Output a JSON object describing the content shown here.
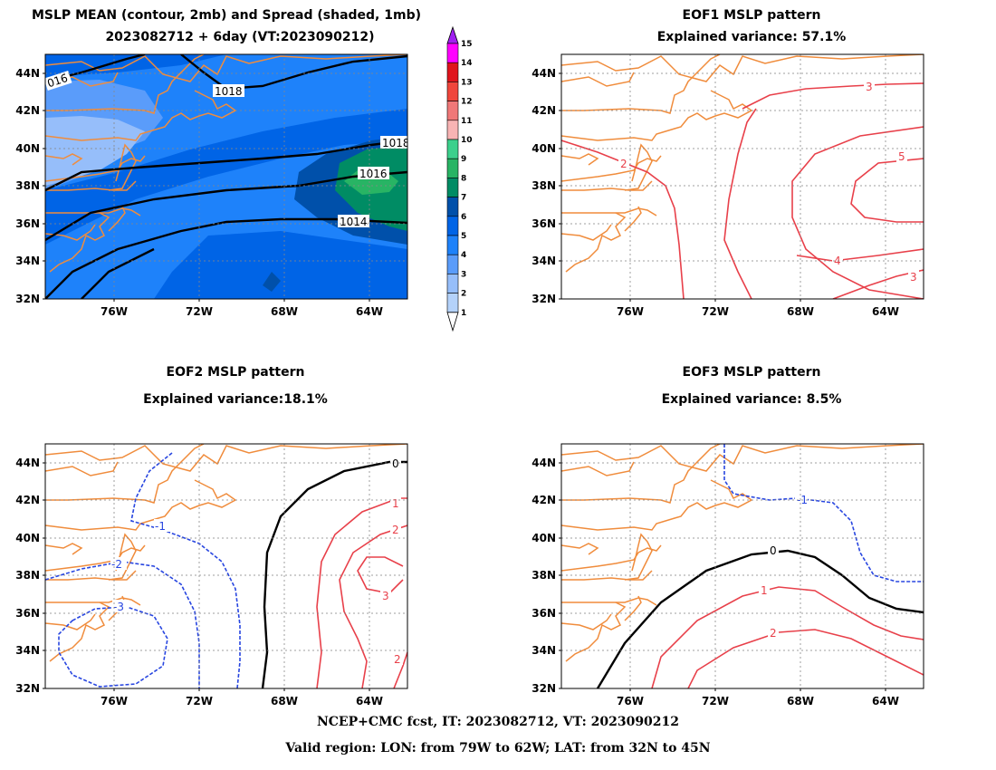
{
  "panels": [
    {
      "id": "mean",
      "title_line1": "MSLP MEAN (contour, 2mb) and Spread (shaded, 1mb)",
      "title_line2": "2023082712 + 6day (VT:2023090212)",
      "contour_labels": [
        "016",
        "1018",
        "1018",
        "1016",
        "1014"
      ]
    },
    {
      "id": "eof1",
      "title_line1": "EOF1 MSLP pattern",
      "title_line2": "Explained variance: 57.1%",
      "contour_labels": [
        "3",
        "2",
        "5",
        "4",
        "3"
      ]
    },
    {
      "id": "eof2",
      "title_line1": "EOF2 MSLP pattern",
      "title_line2": "Explained variance:18.1%",
      "contour_labels": [
        "0",
        "1",
        "2",
        "3",
        "2",
        "-1",
        "-2",
        "-3"
      ]
    },
    {
      "id": "eof3",
      "title_line1": "EOF3 MSLP pattern",
      "title_line2": "Explained variance: 8.5%",
      "contour_labels": [
        "-1",
        "0",
        "1",
        "2"
      ]
    }
  ],
  "axes": {
    "lat_labels": [
      "44N",
      "42N",
      "40N",
      "38N",
      "36N",
      "34N",
      "32N"
    ],
    "lon_labels": [
      "76W",
      "72W",
      "68W",
      "64W"
    ]
  },
  "colorbar": {
    "labels": [
      "15",
      "14",
      "13",
      "12",
      "11",
      "10",
      "9",
      "8",
      "7",
      "6",
      "5",
      "4",
      "3",
      "2",
      "1"
    ],
    "colors": [
      "#a020f0",
      "#ff00ff",
      "#e0141c",
      "#f0463c",
      "#f07878",
      "#f8b4b4",
      "#3cd08c",
      "#28b464",
      "#008c64",
      "#0050aa",
      "#0064e6",
      "#1e82fa",
      "#5a9cfa",
      "#96befa",
      "#b4d2fa"
    ]
  },
  "footer": {
    "line1": "NCEP+CMC fcst, IT: 2023082712, VT: 2023090212",
    "line2": "Valid region: LON: from 79W to 62W; LAT: from 32N to 45N"
  },
  "colors": {
    "coast": "#f08c3c",
    "positive": "#e8404a",
    "negative": "#2846e0",
    "zero": "#000000",
    "grid": "#888888"
  }
}
